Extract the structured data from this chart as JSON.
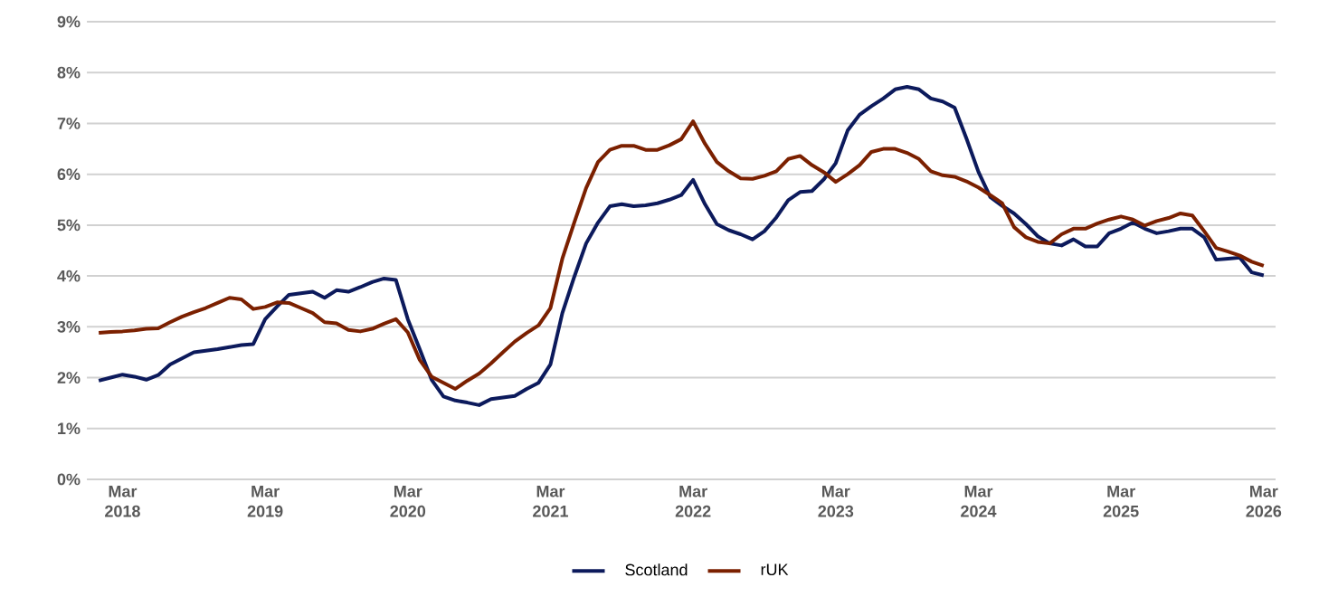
{
  "chart_data": {
    "type": "line",
    "x": [
      "2018-01",
      "2018-02",
      "2018-03",
      "2018-04",
      "2018-05",
      "2018-06",
      "2018-07",
      "2018-08",
      "2018-09",
      "2018-10",
      "2018-11",
      "2018-12",
      "2019-01",
      "2019-02",
      "2019-03",
      "2019-04",
      "2019-05",
      "2019-06",
      "2019-07",
      "2019-08",
      "2019-09",
      "2019-10",
      "2019-11",
      "2019-12",
      "2020-01",
      "2020-02",
      "2020-03",
      "2020-04",
      "2020-05",
      "2020-06",
      "2020-07",
      "2020-08",
      "2020-09",
      "2020-10",
      "2020-11",
      "2020-12",
      "2021-01",
      "2021-02",
      "2021-03",
      "2021-04",
      "2021-05",
      "2021-06",
      "2021-07",
      "2021-08",
      "2021-09",
      "2021-10",
      "2021-11",
      "2021-12",
      "2022-01",
      "2022-02",
      "2022-03",
      "2022-04",
      "2022-05",
      "2022-06",
      "2022-07",
      "2022-08",
      "2022-09",
      "2022-10",
      "2022-11",
      "2022-12",
      "2023-01",
      "2023-02",
      "2023-03",
      "2023-04",
      "2023-05",
      "2023-06",
      "2023-07",
      "2023-08",
      "2023-09",
      "2023-10",
      "2023-11",
      "2023-12",
      "2024-01",
      "2024-02",
      "2024-03",
      "2024-04",
      "2024-05",
      "2024-06",
      "2024-07",
      "2024-08",
      "2024-09",
      "2024-10",
      "2024-11",
      "2024-12",
      "2025-01",
      "2025-02",
      "2025-03",
      "2025-04",
      "2025-05",
      "2025-06",
      "2025-07",
      "2025-08",
      "2025-09",
      "2025-10",
      "2025-11",
      "2025-12",
      "2026-01",
      "2026-02",
      "2026-03"
    ],
    "series": [
      {
        "name": "Scotland",
        "color": "#0c1a5c",
        "values": [
          1.94,
          2.0,
          2.06,
          2.02,
          1.96,
          2.05,
          2.26,
          2.38,
          2.5,
          2.53,
          2.56,
          2.6,
          2.64,
          2.66,
          3.15,
          3.4,
          3.63,
          3.66,
          3.69,
          3.57,
          3.72,
          3.69,
          3.78,
          3.88,
          3.95,
          3.92,
          3.15,
          2.56,
          1.96,
          1.63,
          1.55,
          1.51,
          1.46,
          1.58,
          1.61,
          1.64,
          1.78,
          1.9,
          2.26,
          3.27,
          3.98,
          4.64,
          5.05,
          5.37,
          5.41,
          5.37,
          5.39,
          5.43,
          5.5,
          5.59,
          5.89,
          5.41,
          5.02,
          4.9,
          4.82,
          4.72,
          4.88,
          5.15,
          5.49,
          5.65,
          5.67,
          5.9,
          6.22,
          6.86,
          7.17,
          7.34,
          7.49,
          7.67,
          7.72,
          7.67,
          7.49,
          7.43,
          7.31,
          6.7,
          6.05,
          5.55,
          5.38,
          5.23,
          5.02,
          4.78,
          4.64,
          4.6,
          4.72,
          4.58,
          4.58,
          4.84,
          4.93,
          5.05,
          4.93,
          4.84,
          4.88,
          4.93,
          4.93,
          4.76,
          4.32,
          4.34,
          4.36,
          4.07,
          4.01
        ]
      },
      {
        "name": "rUK",
        "color": "#7b2000",
        "values": [
          2.88,
          2.9,
          2.91,
          2.93,
          2.96,
          2.97,
          3.09,
          3.2,
          3.29,
          3.37,
          3.47,
          3.57,
          3.54,
          3.35,
          3.39,
          3.48,
          3.47,
          3.37,
          3.27,
          3.09,
          3.07,
          2.94,
          2.91,
          2.96,
          3.06,
          3.15,
          2.89,
          2.35,
          2.02,
          1.9,
          1.78,
          1.94,
          2.08,
          2.28,
          2.5,
          2.71,
          2.88,
          3.03,
          3.37,
          4.34,
          5.05,
          5.73,
          6.24,
          6.48,
          6.56,
          6.56,
          6.48,
          6.48,
          6.57,
          6.69,
          7.04,
          6.6,
          6.24,
          6.06,
          5.92,
          5.91,
          5.97,
          6.06,
          6.3,
          6.36,
          6.18,
          6.04,
          5.85,
          6.0,
          6.18,
          6.44,
          6.5,
          6.5,
          6.42,
          6.3,
          6.06,
          5.98,
          5.95,
          5.86,
          5.74,
          5.59,
          5.43,
          4.96,
          4.76,
          4.67,
          4.64,
          4.82,
          4.93,
          4.93,
          5.03,
          5.11,
          5.17,
          5.11,
          4.99,
          5.08,
          5.14,
          5.23,
          5.19,
          4.88,
          4.55,
          4.48,
          4.4,
          4.28,
          4.2
        ]
      }
    ],
    "xlim": [
      "2017-12",
      "2026-04"
    ],
    "xticks": [
      {
        "value": "2018-03",
        "label": "Mar 2018"
      },
      {
        "value": "2019-03",
        "label": "Mar 2019"
      },
      {
        "value": "2020-03",
        "label": "Mar 2020"
      },
      {
        "value": "2021-03",
        "label": "Mar 2021"
      },
      {
        "value": "2022-03",
        "label": "Mar 2022"
      },
      {
        "value": "2023-03",
        "label": "Mar 2023"
      },
      {
        "value": "2024-03",
        "label": "Mar 2024"
      },
      {
        "value": "2025-03",
        "label": "Mar 2025"
      },
      {
        "value": "2026-03",
        "label": "Mar 2026"
      }
    ],
    "ylim": [
      0,
      9
    ],
    "yticks": [
      {
        "value": 0,
        "label": "0%"
      },
      {
        "value": 1,
        "label": "1%"
      },
      {
        "value": 2,
        "label": "2%"
      },
      {
        "value": 3,
        "label": "3%"
      },
      {
        "value": 4,
        "label": "4%"
      },
      {
        "value": 5,
        "label": "5%"
      },
      {
        "value": 6,
        "label": "6%"
      },
      {
        "value": 7,
        "label": "7%"
      },
      {
        "value": 8,
        "label": "8%"
      },
      {
        "value": 9,
        "label": "9%"
      }
    ],
    "grid": "y",
    "legend": "bottom",
    "marker": "none",
    "line_style": "solid"
  }
}
